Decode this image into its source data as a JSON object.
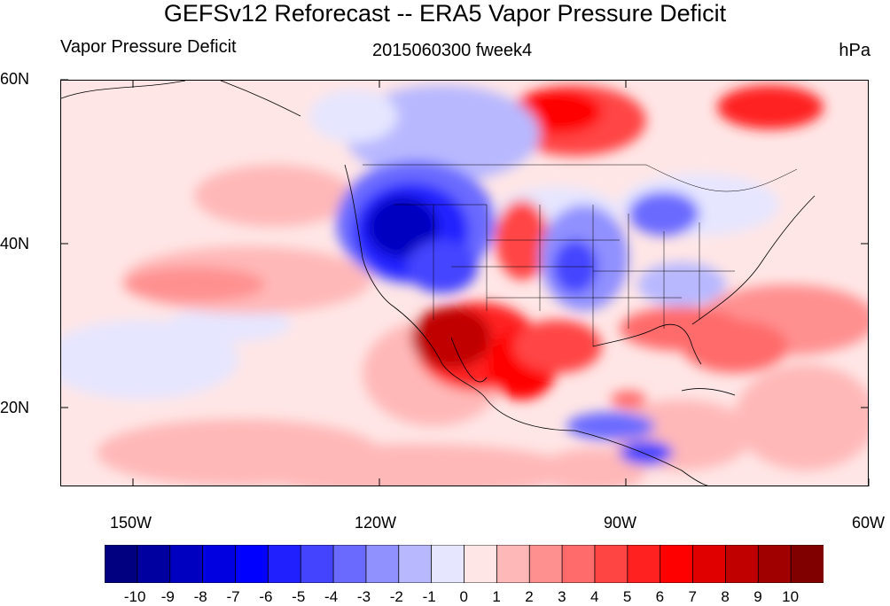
{
  "title": "GEFSv12 Reforecast -- ERA5 Vapor Pressure Deficit",
  "left_label": "Vapor Pressure Deficit",
  "center_label": "2015060300 fweek4",
  "right_label": "hPa",
  "map": {
    "projection": "cylindrical-equidistant",
    "lon_range": [
      -160,
      -60
    ],
    "lat_range": [
      10,
      60
    ],
    "lat_ticks": [
      "60N",
      "40N",
      "20N"
    ],
    "lon_ticks": [
      "150W",
      "120W",
      "90W",
      "60W"
    ],
    "features": [
      "coastlines",
      "country-borders",
      "us-state-borders"
    ]
  },
  "colorbar": {
    "colors": [
      "#000080",
      "#0000a0",
      "#0000c0",
      "#0000e0",
      "#0000ff",
      "#2020ff",
      "#4444ff",
      "#6a6aff",
      "#9090ff",
      "#b8b8ff",
      "#e6e6ff",
      "#ffe6e6",
      "#ffb8b8",
      "#ff9090",
      "#ff6a6a",
      "#ff4444",
      "#ff2020",
      "#ff0000",
      "#e00000",
      "#c00000",
      "#a00000",
      "#800000"
    ],
    "labels": [
      "-10",
      "-9",
      "-8",
      "-7",
      "-6",
      "-5",
      "-4",
      "-3",
      "-2",
      "-1",
      "0",
      "1",
      "2",
      "3",
      "4",
      "5",
      "6",
      "7",
      "8",
      "9",
      "10"
    ]
  }
}
